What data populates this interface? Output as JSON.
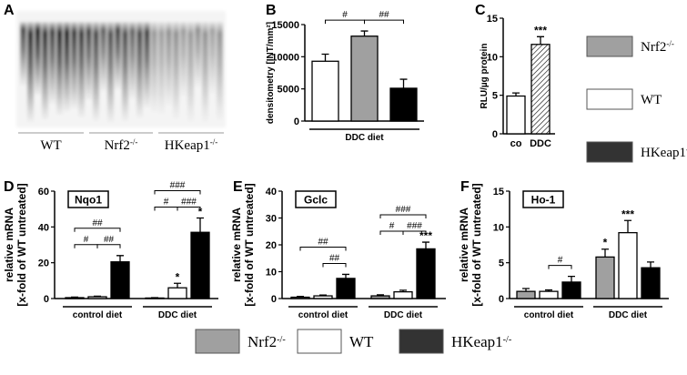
{
  "panel_labels": [
    "A",
    "B",
    "C",
    "D",
    "E",
    "F"
  ],
  "blot": {
    "lanes": [
      {
        "base": "WT"
      },
      {
        "base": "Nrf2",
        "sup": "-/-"
      },
      {
        "base": "HKeap1",
        "sup": "-/-"
      }
    ]
  },
  "legend_top": [
    {
      "base": "Nrf2",
      "sup": "-/-",
      "color": "#a0a0a0"
    },
    {
      "base": "WT",
      "color": "#ffffff"
    },
    {
      "base": "HKeap1",
      "sup": "-/-",
      "color": "#333333"
    }
  ],
  "legend_bottom": [
    {
      "base": "Nrf2",
      "sup": "-/-",
      "color": "#a0a0a0"
    },
    {
      "base": "WT",
      "color": "#ffffff"
    },
    {
      "base": "HKeap1",
      "sup": "-/-",
      "color": "#333333"
    }
  ],
  "chart_data": [
    {
      "type": "grouped_bar",
      "ylabel": "densitometry [INT/mm²]",
      "categories": [
        "DDC diet"
      ],
      "series": [
        {
          "color": "#ffffff",
          "values": [
            9300
          ],
          "errors": [
            1100
          ]
        },
        {
          "color": "#a0a0a0",
          "values": [
            13200
          ],
          "errors": [
            800
          ]
        },
        {
          "color": "#000000",
          "values": [
            5100
          ],
          "errors": [
            1400
          ]
        }
      ],
      "ylim": [
        0,
        15000
      ],
      "yticks": [
        0,
        5000,
        10000,
        15000
      ],
      "brackets": [
        {
          "category": 0,
          "from": 0,
          "to": 1,
          "label": "#"
        },
        {
          "category": 0,
          "from": 1,
          "to": 2,
          "label": "##"
        }
      ]
    },
    {
      "type": "bar",
      "ylabel": "RLU/µg protein",
      "categories": [
        "co",
        "DDC"
      ],
      "values": [
        4.9,
        11.6
      ],
      "errors": [
        0.4,
        1.0
      ],
      "colors": [
        "#ffffff",
        "hatch"
      ],
      "stars": [
        null,
        "***"
      ],
      "ylim": [
        0,
        15
      ],
      "yticks": [
        0,
        5,
        10,
        15
      ]
    },
    {
      "type": "grouped_bar",
      "title": "Nqo1",
      "ylabel": [
        "relative mRNA",
        "[x-fold of WT untreated]"
      ],
      "categories": [
        "control diet",
        "DDC diet"
      ],
      "series": [
        {
          "color": "#a0a0a0",
          "values": [
            0.5,
            0.3
          ],
          "errors": [
            0.3,
            0.2
          ]
        },
        {
          "color": "#ffffff",
          "values": [
            1.0,
            6.0
          ],
          "errors": [
            0.3,
            2.5
          ],
          "stars": [
            null,
            "*"
          ]
        },
        {
          "color": "#000000",
          "values": [
            20.5,
            37
          ],
          "errors": [
            3.5,
            8
          ],
          "stars": [
            null,
            "*"
          ]
        }
      ],
      "ylim": [
        0,
        60
      ],
      "yticks": [
        0,
        20,
        40,
        60
      ],
      "brackets": [
        {
          "category": 0,
          "from": 0,
          "to": 1,
          "label": "#"
        },
        {
          "category": 0,
          "from": 1,
          "to": 2,
          "label": "##"
        },
        {
          "category": 0,
          "from": 0,
          "to": 2,
          "label": "##"
        },
        {
          "category": 1,
          "from": 0,
          "to": 1,
          "label": "#"
        },
        {
          "category": 1,
          "from": 1,
          "to": 2,
          "label": "###"
        },
        {
          "category": 1,
          "from": 0,
          "to": 2,
          "label": "###"
        }
      ]
    },
    {
      "type": "grouped_bar",
      "title": "Gclc",
      "ylabel": [
        "relative mRNA",
        "[x-fold of WT untreated]"
      ],
      "categories": [
        "control diet",
        "DDC diet"
      ],
      "series": [
        {
          "color": "#a0a0a0",
          "values": [
            0.5,
            1.0
          ],
          "errors": [
            0.3,
            0.4
          ]
        },
        {
          "color": "#ffffff",
          "values": [
            1.0,
            2.5
          ],
          "errors": [
            0.3,
            0.6
          ]
        },
        {
          "color": "#000000",
          "values": [
            7.5,
            18.5
          ],
          "errors": [
            1.5,
            2.5
          ],
          "stars": [
            null,
            "***"
          ]
        }
      ],
      "ylim": [
        0,
        40
      ],
      "yticks": [
        0,
        10,
        20,
        30,
        40
      ],
      "brackets": [
        {
          "category": 0,
          "from": 1,
          "to": 2,
          "label": "##"
        },
        {
          "category": 0,
          "from": 0,
          "to": 2,
          "label": "##"
        },
        {
          "category": 1,
          "from": 0,
          "to": 1,
          "label": "#"
        },
        {
          "category": 1,
          "from": 1,
          "to": 2,
          "label": "###"
        },
        {
          "category": 1,
          "from": 0,
          "to": 2,
          "label": "###"
        }
      ]
    },
    {
      "type": "grouped_bar",
      "title": "Ho-1",
      "ylabel": [
        "relative mRNA",
        "[x-fold of WT untreated]"
      ],
      "categories": [
        "control diet",
        "DDC diet"
      ],
      "series": [
        {
          "color": "#a0a0a0",
          "values": [
            1.0,
            5.8
          ],
          "errors": [
            0.4,
            1.1
          ],
          "stars": [
            null,
            "*"
          ]
        },
        {
          "color": "#ffffff",
          "values": [
            1.0,
            9.2
          ],
          "errors": [
            0.2,
            1.7
          ],
          "stars": [
            null,
            "***"
          ]
        },
        {
          "color": "#000000",
          "values": [
            2.3,
            4.3
          ],
          "errors": [
            0.8,
            0.8
          ]
        }
      ],
      "ylim": [
        0,
        15
      ],
      "yticks": [
        0,
        5,
        10,
        15
      ],
      "brackets": [
        {
          "category": 0,
          "from": 1,
          "to": 2,
          "label": "#"
        }
      ]
    }
  ]
}
